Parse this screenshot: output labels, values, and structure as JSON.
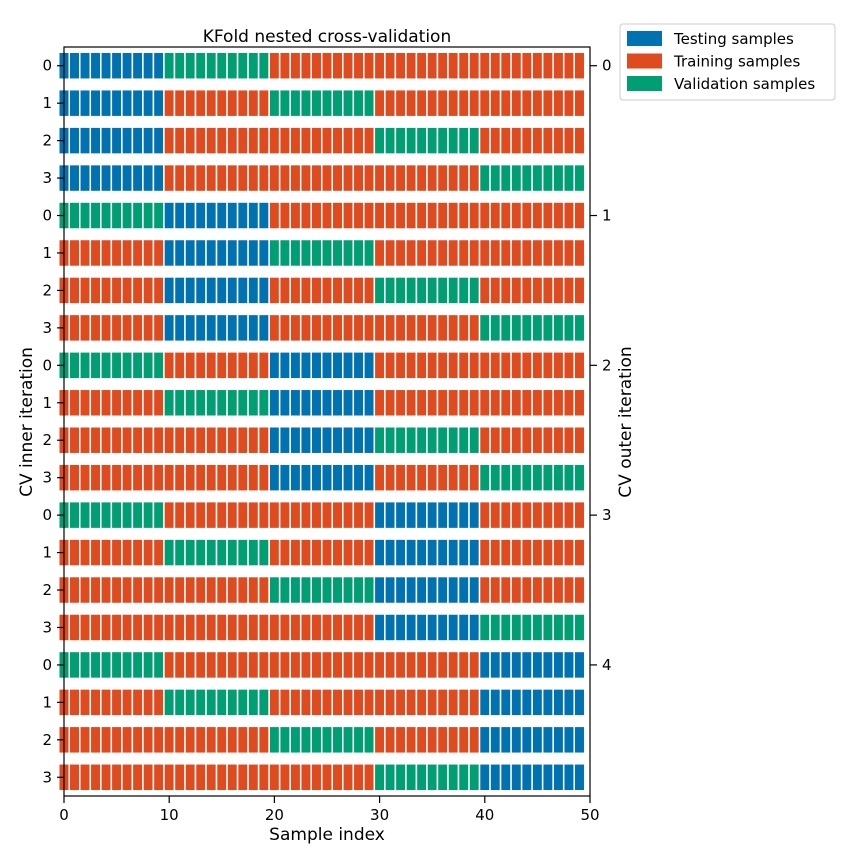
{
  "chart_data": {
    "type": "heatmap",
    "title": "KFold nested cross-validation",
    "xlabel": "Sample index",
    "ylabel_left": "CV inner iteration",
    "ylabel_right": "CV outer iteration",
    "xlim": [
      0,
      50
    ],
    "n_samples": 50,
    "xticks": [
      "0",
      "10",
      "20",
      "30",
      "40",
      "50"
    ],
    "inner_tick_labels": [
      "0",
      "1",
      "2",
      "3",
      "0",
      "1",
      "2",
      "3",
      "0",
      "1",
      "2",
      "3",
      "0",
      "1",
      "2",
      "3",
      "0",
      "1",
      "2",
      "3"
    ],
    "outer_tick_labels": [
      "0",
      "1",
      "2",
      "3",
      "4"
    ],
    "legend": [
      {
        "key": "test",
        "label": "Testing samples",
        "color": "#0072b2"
      },
      {
        "key": "train",
        "label": "Training samples",
        "color": "#e04a1f"
      },
      {
        "key": "val",
        "label": "Validation samples",
        "color": "#009e73"
      }
    ],
    "legend_position": "outside upper right",
    "rows": [
      {
        "outer": 0,
        "inner": 0,
        "test": [
          0,
          10
        ],
        "val": [
          10,
          20
        ]
      },
      {
        "outer": 0,
        "inner": 1,
        "test": [
          0,
          10
        ],
        "val": [
          20,
          30
        ]
      },
      {
        "outer": 0,
        "inner": 2,
        "test": [
          0,
          10
        ],
        "val": [
          30,
          40
        ]
      },
      {
        "outer": 0,
        "inner": 3,
        "test": [
          0,
          10
        ],
        "val": [
          40,
          50
        ]
      },
      {
        "outer": 1,
        "inner": 0,
        "test": [
          10,
          20
        ],
        "val": [
          0,
          10
        ]
      },
      {
        "outer": 1,
        "inner": 1,
        "test": [
          10,
          20
        ],
        "val": [
          20,
          30
        ]
      },
      {
        "outer": 1,
        "inner": 2,
        "test": [
          10,
          20
        ],
        "val": [
          30,
          40
        ]
      },
      {
        "outer": 1,
        "inner": 3,
        "test": [
          10,
          20
        ],
        "val": [
          40,
          50
        ]
      },
      {
        "outer": 2,
        "inner": 0,
        "test": [
          20,
          30
        ],
        "val": [
          0,
          10
        ]
      },
      {
        "outer": 2,
        "inner": 1,
        "test": [
          20,
          30
        ],
        "val": [
          10,
          20
        ]
      },
      {
        "outer": 2,
        "inner": 2,
        "test": [
          20,
          30
        ],
        "val": [
          30,
          40
        ]
      },
      {
        "outer": 2,
        "inner": 3,
        "test": [
          20,
          30
        ],
        "val": [
          40,
          50
        ]
      },
      {
        "outer": 3,
        "inner": 0,
        "test": [
          30,
          40
        ],
        "val": [
          0,
          10
        ]
      },
      {
        "outer": 3,
        "inner": 1,
        "test": [
          30,
          40
        ],
        "val": [
          10,
          20
        ]
      },
      {
        "outer": 3,
        "inner": 2,
        "test": [
          30,
          40
        ],
        "val": [
          20,
          30
        ]
      },
      {
        "outer": 3,
        "inner": 3,
        "test": [
          30,
          40
        ],
        "val": [
          40,
          50
        ]
      },
      {
        "outer": 4,
        "inner": 0,
        "test": [
          40,
          50
        ],
        "val": [
          0,
          10
        ]
      },
      {
        "outer": 4,
        "inner": 1,
        "test": [
          40,
          50
        ],
        "val": [
          10,
          20
        ]
      },
      {
        "outer": 4,
        "inner": 2,
        "test": [
          40,
          50
        ],
        "val": [
          20,
          30
        ]
      },
      {
        "outer": 4,
        "inner": 3,
        "test": [
          40,
          50
        ],
        "val": [
          30,
          40
        ]
      }
    ]
  }
}
